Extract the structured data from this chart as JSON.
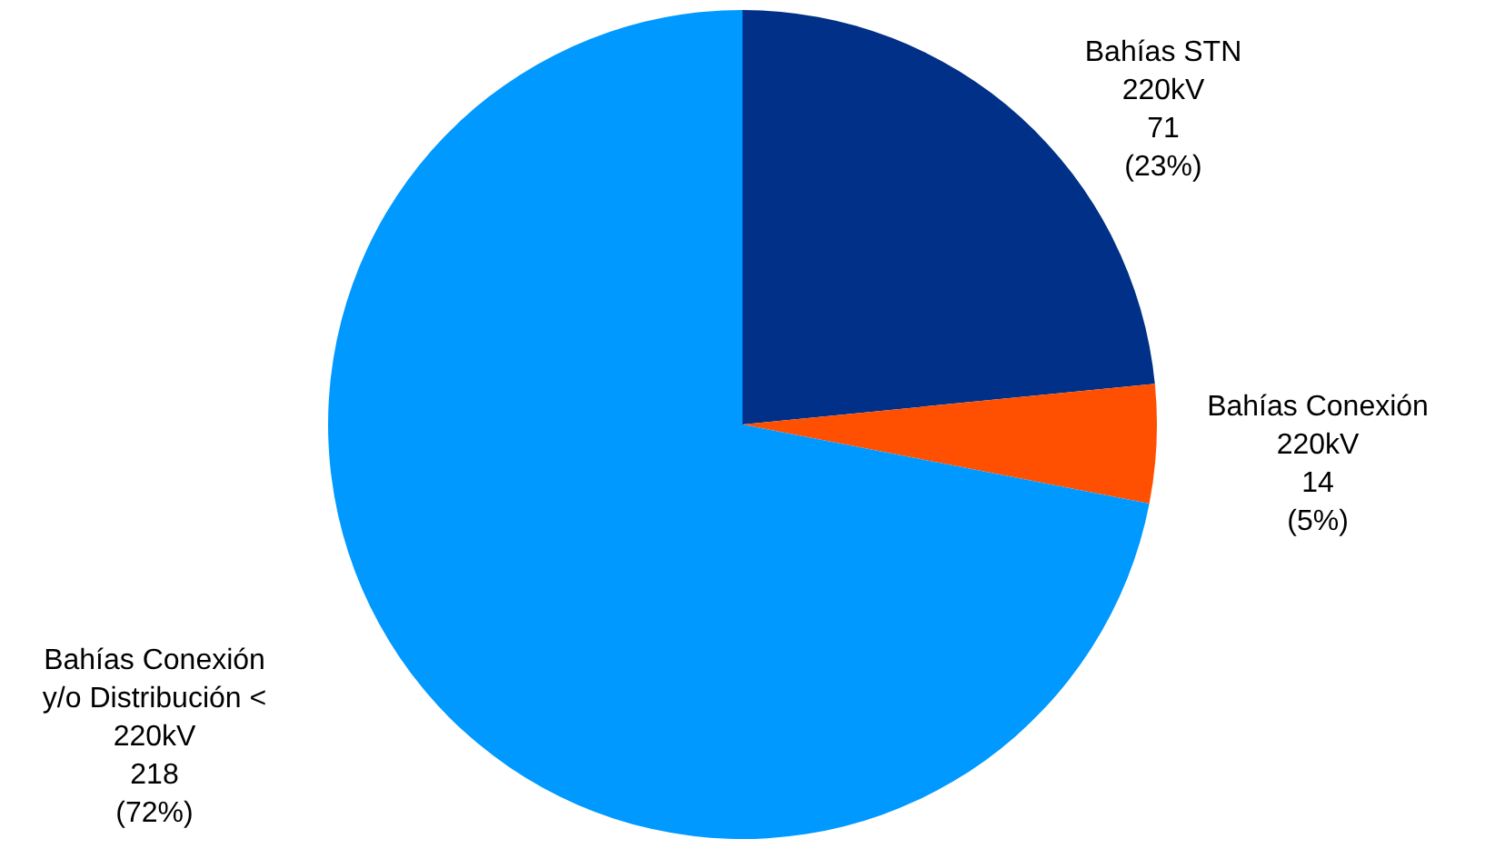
{
  "chart_data": {
    "type": "pie",
    "categories": [
      "Bahías STN\n220kV",
      "Bahías Conexión\n220kV",
      "Bahías Conexión\ny/o Distribución <\n220kV"
    ],
    "values": [
      71,
      14,
      218
    ],
    "colors": [
      "#003087",
      "#ff4f00",
      "#0099ff"
    ],
    "value_labels": [
      "71\n(23%)",
      "14\n(5%)",
      "218\n(72%)"
    ]
  }
}
